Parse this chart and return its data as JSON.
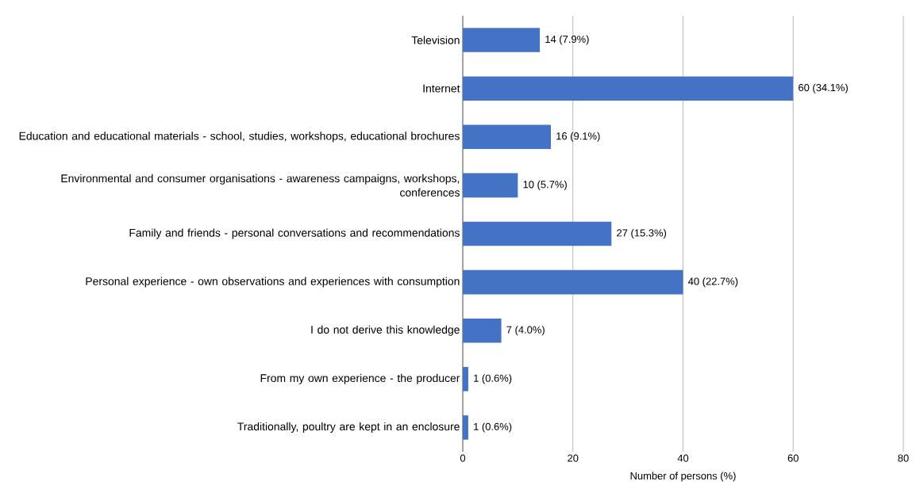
{
  "chart_data": {
    "type": "bar",
    "orientation": "horizontal",
    "xlabel": "Number of persons (%)",
    "categories": [
      "Television",
      "Internet",
      "Education and educational materials - school, studies, workshops, educational brochures",
      "Environmental and consumer organisations - awareness campaigns, workshops, conferences",
      "Family and friends - personal conversations and recommendations",
      "Personal experience - own observations and experiences with consumption",
      "I do not derive this knowledge",
      "From my own experience - the producer",
      "Traditionally, poultry are kept in an enclosure"
    ],
    "values": [
      14,
      60,
      16,
      10,
      27,
      40,
      7,
      1,
      1
    ],
    "value_labels": [
      "14 (7.9%)",
      "60 (34.1%)",
      "16 (9.1%)",
      "10 (5.7%)",
      "27 (15.3%)",
      "40 (22.7%)",
      "7 (4.0%)",
      "1 (0.6%)",
      "1 (0.6%)"
    ],
    "color": "#4472c4",
    "xlim": [
      0,
      80
    ],
    "xticks": [
      0,
      20,
      40,
      60,
      80
    ],
    "grid": "x"
  }
}
